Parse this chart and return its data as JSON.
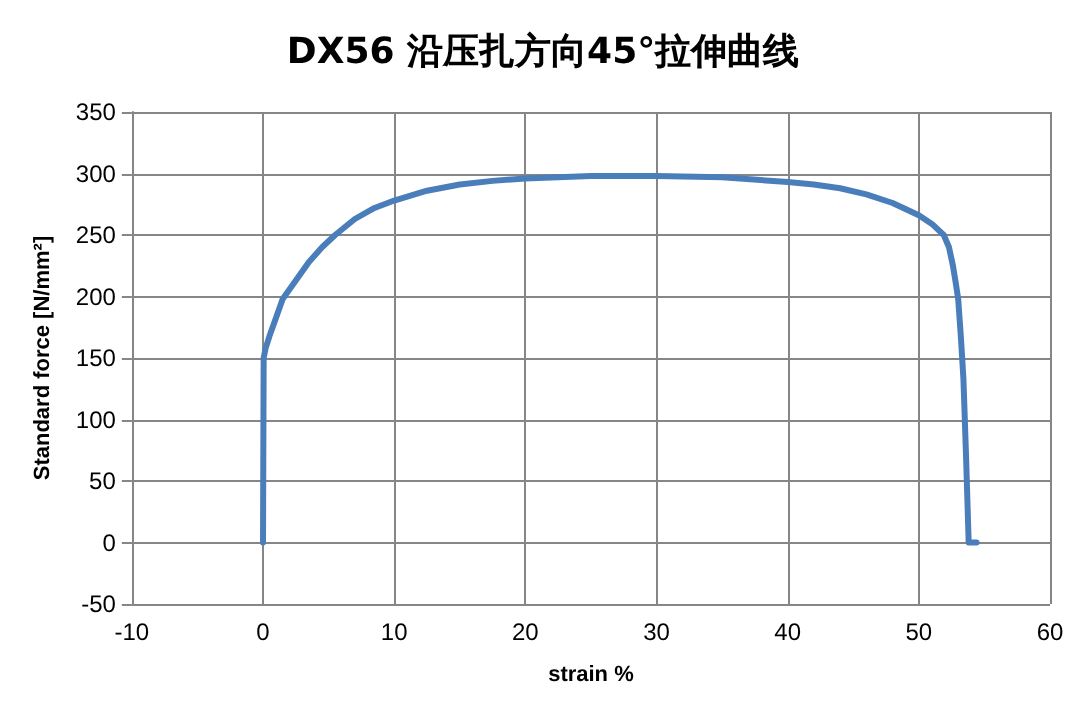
{
  "chart_data": {
    "type": "line",
    "title": "DX56 沿压扎方向45°拉伸曲线",
    "xlabel": "strain %",
    "ylabel": "Standard force [N/mm²]",
    "series": [
      {
        "color": "#4a7ebb",
        "x": [
          0,
          0.05,
          0.2,
          0.5,
          1,
          1.5,
          2.5,
          3.5,
          4.5,
          5.5,
          7,
          8.5,
          10,
          12.5,
          15,
          17.5,
          20,
          25,
          30,
          35,
          40,
          42,
          44,
          46,
          48,
          50,
          51,
          51.9,
          52.3,
          52.6,
          52.8,
          53,
          53.2,
          53.4,
          53.6,
          53.8,
          54.4
        ],
        "values": [
          0,
          150,
          158,
          168,
          183,
          198,
          213,
          228,
          240,
          250,
          263,
          272,
          278,
          286,
          291,
          294,
          296,
          298,
          298,
          297,
          293,
          291,
          288,
          283,
          276,
          266,
          259,
          250,
          240,
          225,
          212,
          198,
          168,
          133,
          70,
          0,
          0
        ]
      }
    ],
    "xlim": [
      -10,
      60
    ],
    "xticks": [
      -10,
      0,
      10,
      20,
      30,
      40,
      50,
      60
    ],
    "ylim": [
      -50,
      350
    ],
    "yticks": [
      -50,
      0,
      50,
      100,
      150,
      200,
      250,
      300,
      350
    ],
    "grid": true,
    "marker": "none",
    "line_style": "solid"
  }
}
